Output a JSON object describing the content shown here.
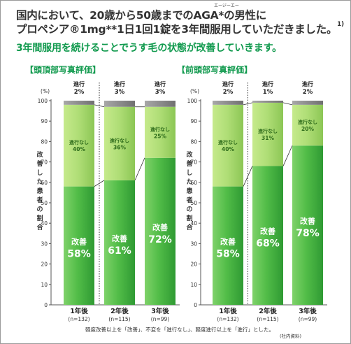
{
  "header": {
    "line1": "国内において、20歳から50歳までのAGA*の男性に",
    "ruby": "エージーエー",
    "line2": "プロペシア®1mg**1日1回1錠を3年間服用していただきました。",
    "line2_sup": "1)",
    "subtitle": "3年間服用を続けることでうす毛の状態が改善していきます。"
  },
  "footnote": "軽度改善以上を「改善」、不変を「進行なし」、軽度進行以上を「進行」とした。",
  "source": "(社内資料)",
  "colors": {
    "improve": "#45b845",
    "noprogress": "#a5d96b",
    "progress": "#8a8a8a",
    "accent": "#119a4e"
  },
  "chart_data": [
    {
      "type": "bar",
      "stacked": true,
      "title": "【頭頂部写真評価】",
      "ylabel": "改善した患者の割合",
      "yunit": "(%)",
      "ylim": [
        0,
        100
      ],
      "yticks": [
        0,
        10,
        20,
        30,
        40,
        50,
        60,
        70,
        80,
        90,
        100
      ],
      "categories": [
        "1年後",
        "2年後",
        "3年後"
      ],
      "n_labels": [
        "(n=132)",
        "(n=115)",
        "(n=99)"
      ],
      "series": [
        {
          "name": "改善",
          "values": [
            58,
            61,
            72
          ]
        },
        {
          "name": "進行なし",
          "values": [
            40,
            36,
            25
          ]
        },
        {
          "name": "進行",
          "values": [
            2,
            3,
            3
          ]
        }
      ]
    },
    {
      "type": "bar",
      "stacked": true,
      "title": "【前頭部写真評価】",
      "ylabel": "改善した患者の割合",
      "yunit": "(%)",
      "ylim": [
        0,
        100
      ],
      "yticks": [
        0,
        10,
        20,
        30,
        40,
        50,
        60,
        70,
        80,
        90,
        100
      ],
      "categories": [
        "1年後",
        "2年後",
        "3年後"
      ],
      "n_labels": [
        "(n=132)",
        "(n=115)",
        "(n=99)"
      ],
      "series": [
        {
          "name": "改善",
          "values": [
            58,
            68,
            78
          ]
        },
        {
          "name": "進行なし",
          "values": [
            40,
            31,
            20
          ]
        },
        {
          "name": "進行",
          "values": [
            2,
            1,
            2
          ]
        }
      ]
    }
  ]
}
